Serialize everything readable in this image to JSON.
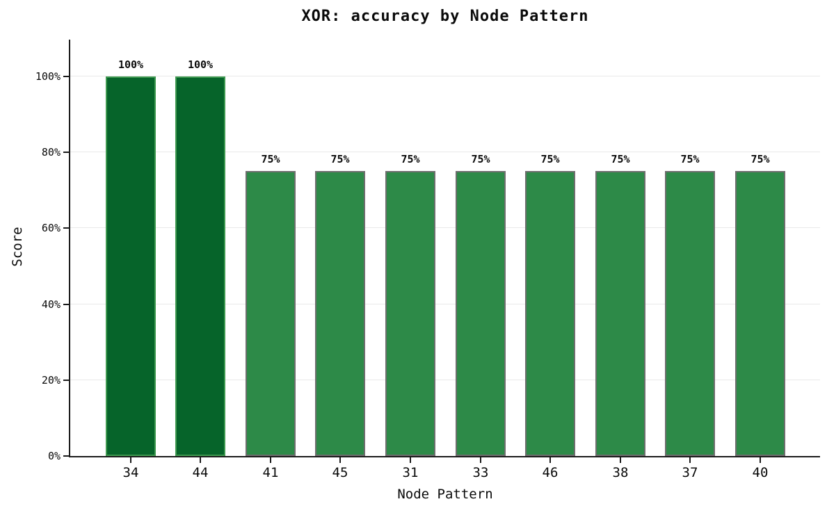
{
  "title": "XOR: accuracy by Node Pattern",
  "chart_data": {
    "type": "bar",
    "title": "XOR: accuracy by Node Pattern",
    "xlabel": "Node Pattern",
    "ylabel": "Score",
    "categories": [
      "34",
      "44",
      "41",
      "45",
      "31",
      "33",
      "46",
      "38",
      "37",
      "40"
    ],
    "values": [
      100,
      100,
      75,
      75,
      75,
      75,
      75,
      75,
      75,
      75
    ],
    "value_labels": [
      "100%",
      "100%",
      "75%",
      "75%",
      "75%",
      "75%",
      "75%",
      "75%",
      "75%",
      "75%"
    ],
    "highlighted": [
      true,
      true,
      false,
      false,
      false,
      false,
      false,
      false,
      false,
      false
    ],
    "ylim": [
      0,
      110
    ],
    "yticks": [
      0,
      20,
      40,
      60,
      80,
      100
    ],
    "ytick_labels": [
      "0%",
      "20%",
      "40%",
      "60%",
      "80%",
      "100%"
    ],
    "grid": "horizontal",
    "legend": null,
    "colors": {
      "bar_fill": "#2d8a48",
      "bar_edge": "#6e6e6e",
      "highlight_fill": "#06642a",
      "highlight_edge": "#3f9950",
      "gridline": "#e9e9e9",
      "axis": "#1a1a1a",
      "text": "#0a0a0a",
      "background": "#ffffff"
    }
  }
}
